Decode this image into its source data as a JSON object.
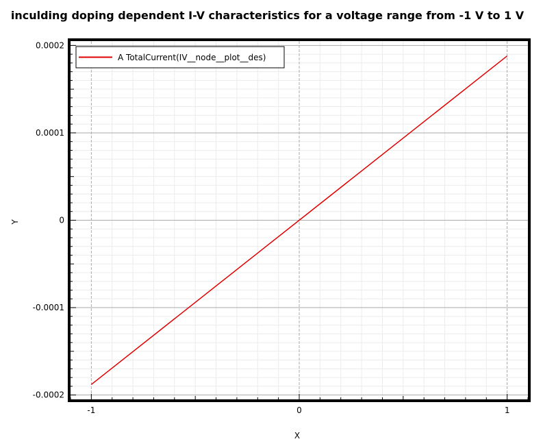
{
  "chart_data": {
    "type": "line",
    "title": "inculding doping dependent I-V characteristics for a voltage range from -1 V to 1 V",
    "xlabel": "X",
    "ylabel": "Y",
    "xlim": [
      -1.1,
      1.1
    ],
    "ylim": [
      -0.000205,
      0.000205
    ],
    "x_ticks": [
      {
        "value": -1,
        "label": "-1"
      },
      {
        "value": 0,
        "label": "0"
      },
      {
        "value": 1,
        "label": "1"
      }
    ],
    "y_ticks": [
      {
        "value": -0.0002,
        "label": "-0.0002"
      },
      {
        "value": -0.0001,
        "label": "-0.0001"
      },
      {
        "value": 0,
        "label": "0"
      },
      {
        "value": 0.0001,
        "label": "0.0001"
      },
      {
        "value": 0.0002,
        "label": "0.0002"
      }
    ],
    "grid": true,
    "legend_position": "top-left",
    "series": [
      {
        "name": "A TotalCurrent(IV__node__plot__des)",
        "color": "#e00000",
        "x": [
          -1,
          0,
          1
        ],
        "y": [
          -0.000188,
          0,
          0.000188
        ]
      }
    ]
  }
}
